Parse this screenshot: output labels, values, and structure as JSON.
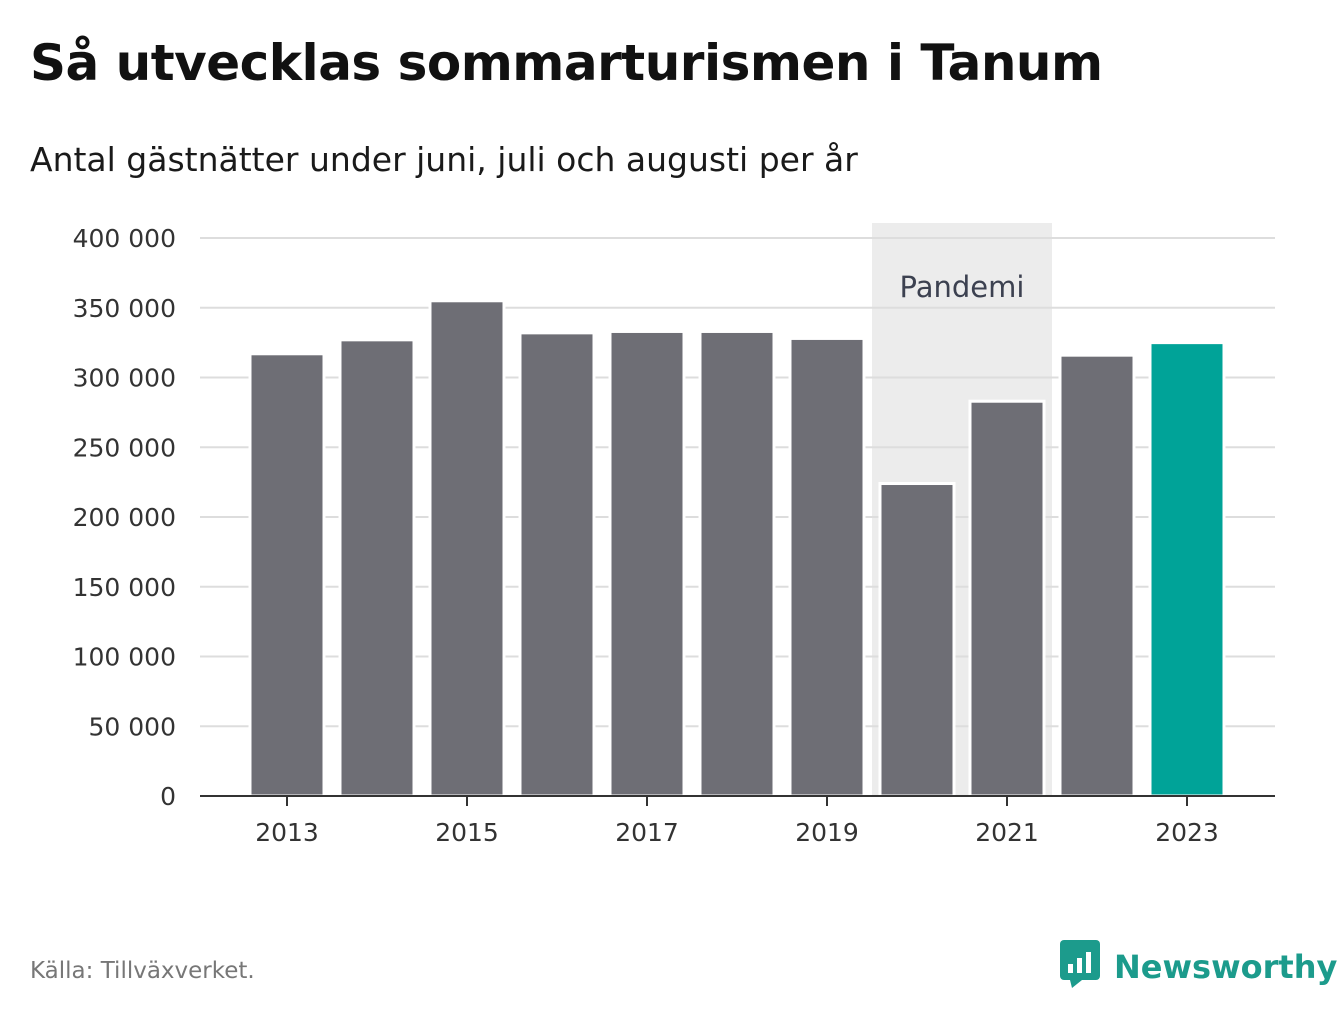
{
  "title": "Så utvecklas sommarturismen i Tanum",
  "subtitle": "Antal gästnätter under juni, juli och augusti per år",
  "source": "Källa: Tillväxverket.",
  "brand": "Newsworthy",
  "colors": {
    "bar": "#6e6e75",
    "highlight": "#00a398",
    "band": "#ececec",
    "grid": "#dddddd",
    "axis": "#333333",
    "brand": "#1c9b8c"
  },
  "icons": {
    "brand": "newsworthy-logo-icon"
  },
  "chart_data": {
    "type": "bar",
    "title": "Så utvecklas sommarturismen i Tanum",
    "subtitle": "Antal gästnätter under juni, juli och augusti per år",
    "categories": [
      "2013",
      "2014",
      "2015",
      "2016",
      "2017",
      "2018",
      "2019",
      "2020",
      "2021",
      "2022",
      "2023"
    ],
    "values": [
      317000,
      327000,
      355000,
      332000,
      333000,
      333000,
      328000,
      224000,
      283000,
      316000,
      325000
    ],
    "highlight_category": "2023",
    "x_tick_labels": [
      "2013",
      "2015",
      "2017",
      "2019",
      "2021",
      "2023"
    ],
    "y_ticks": [
      0,
      50000,
      100000,
      150000,
      200000,
      250000,
      300000,
      350000,
      400000
    ],
    "y_tick_labels": [
      "0",
      "50 000",
      "100 000",
      "150 000",
      "200 000",
      "250 000",
      "300 000",
      "350 000",
      "400 000"
    ],
    "ylim": [
      0,
      400000
    ],
    "xlabel": "",
    "ylabel": "",
    "grid": true,
    "annotations": [
      {
        "label": "Pandemi",
        "from": "2020",
        "to": "2021"
      }
    ]
  }
}
